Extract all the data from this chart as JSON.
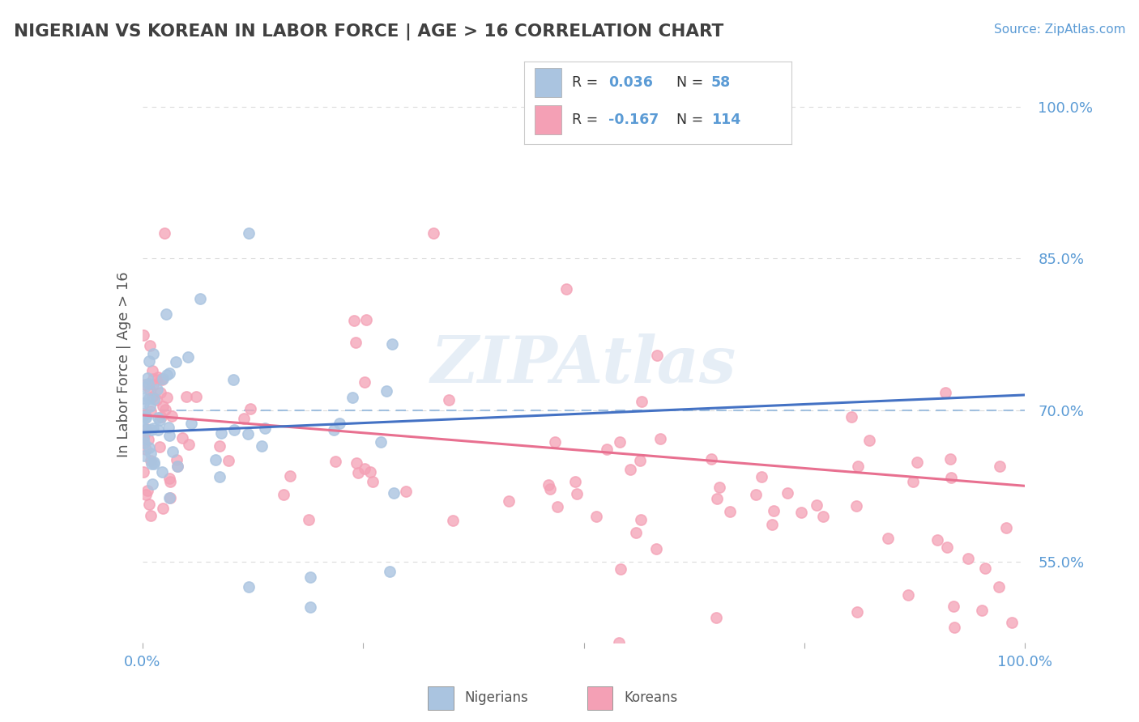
{
  "title": "NIGERIAN VS KOREAN IN LABOR FORCE | AGE > 16 CORRELATION CHART",
  "source": "Source: ZipAtlas.com",
  "ylabel": "In Labor Force | Age > 16",
  "xlim": [
    0.0,
    1.0
  ],
  "ylim": [
    0.47,
    1.02
  ],
  "yticks": [
    0.55,
    0.7,
    0.85,
    1.0
  ],
  "ytick_labels": [
    "55.0%",
    "70.0%",
    "85.0%",
    "100.0%"
  ],
  "xticks": [
    0.0,
    0.25,
    0.5,
    0.75,
    1.0
  ],
  "xtick_labels": [
    "0.0%",
    "",
    "",
    "",
    "100.0%"
  ],
  "nigerian_R": 0.036,
  "nigerian_N": 58,
  "korean_R": -0.167,
  "korean_N": 114,
  "nigerian_dot_color": "#aac4e0",
  "korean_dot_color": "#f4a0b5",
  "nigerian_line_color": "#4472C4",
  "korean_line_color": "#e87090",
  "ref_line_color": "#99bbdd",
  "watermark": "ZIPAtlas",
  "background_color": "#ffffff",
  "grid_color": "#cccccc",
  "tick_label_color": "#5b9bd5",
  "title_color": "#404040",
  "legend_text_color": "#333333",
  "nig_trend_start_y": 0.678,
  "nig_trend_end_y": 0.715,
  "kor_trend_start_y": 0.695,
  "kor_trend_end_y": 0.625
}
